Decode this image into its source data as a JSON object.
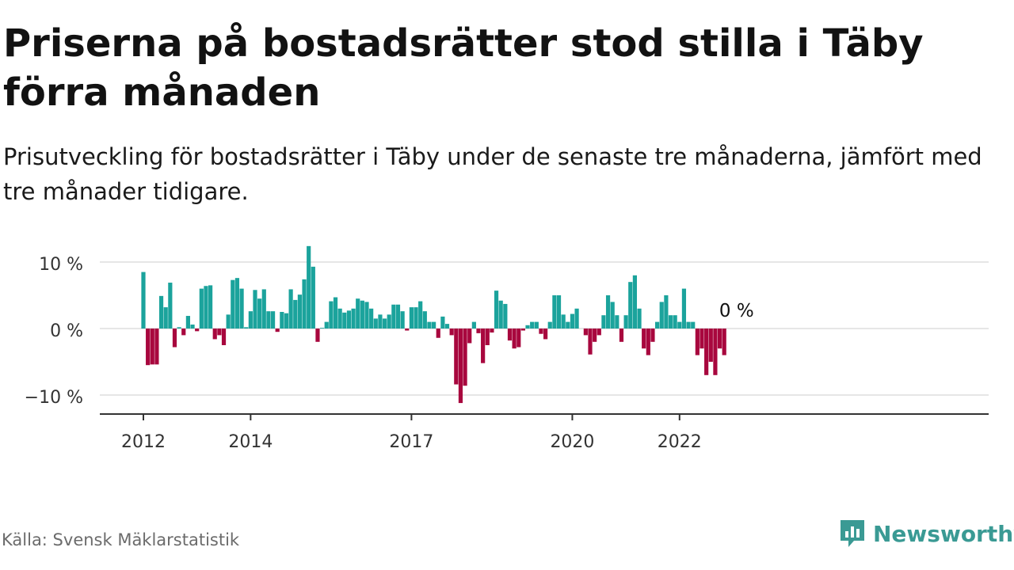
{
  "header": {
    "title": "Priserna på bostadsrätter stod stilla i Täby förra månaden",
    "subtitle": "Prisutveckling för bostadsrätter i Täby under de senaste tre månaderna, jämfört med tre månader tidigare."
  },
  "footer": {
    "source": "Källa: Svensk Mäklarstatistik",
    "brand": "Newsworthy"
  },
  "colors": {
    "positive": "#1ba39c",
    "negative": "#a8073e",
    "grid": "#dddddd",
    "axis": "#333333",
    "brand": "#3a9a94"
  },
  "chart_data": {
    "type": "bar",
    "title": "Priserna på bostadsrätter stod stilla i Täby förra månaden",
    "subtitle": "Prisutveckling för bostadsrätter i Täby under de senaste tre månaderna, jämfört med tre månader tidigare.",
    "start": "2012-01",
    "ylim": [
      -13,
      12
    ],
    "yticks": [
      {
        "value": 10,
        "label": "10 %"
      },
      {
        "value": 0,
        "label": "0 %"
      },
      {
        "value": -10,
        "label": "−10 %"
      }
    ],
    "xticks": [
      {
        "label": "2012",
        "index": 0
      },
      {
        "label": "2014",
        "index": 24
      },
      {
        "label": "2017",
        "index": 60
      },
      {
        "label": "2020",
        "index": 96
      },
      {
        "label": "2022",
        "index": 120
      }
    ],
    "annotation": {
      "label": "0 %",
      "index": 131
    },
    "grid": true,
    "values": [
      8.5,
      -5.5,
      -5.4,
      -5.4,
      4.9,
      3.2,
      6.9,
      -2.8,
      0.2,
      -1.0,
      1.9,
      0.6,
      -0.4,
      6.0,
      6.4,
      6.5,
      -1.6,
      -1.0,
      -2.5,
      2.1,
      7.3,
      7.6,
      6.0,
      0.2,
      2.6,
      5.8,
      4.5,
      5.9,
      2.6,
      2.6,
      -0.5,
      2.5,
      2.3,
      5.9,
      4.3,
      5.1,
      7.4,
      12.4,
      9.3,
      -2.0,
      0.1,
      1.0,
      4.1,
      4.7,
      3.0,
      2.4,
      2.7,
      3.0,
      4.5,
      4.2,
      4.0,
      3.0,
      1.5,
      2.1,
      1.5,
      2.1,
      3.6,
      3.6,
      2.6,
      -0.3,
      3.2,
      3.2,
      4.1,
      2.6,
      1.0,
      1.0,
      -1.4,
      1.8,
      0.7,
      -1.0,
      -8.4,
      -11.2,
      -8.6,
      -2.2,
      1.0,
      -0.7,
      -5.2,
      -2.5,
      -0.6,
      5.7,
      4.2,
      3.7,
      -1.8,
      -3.0,
      -2.8,
      -0.3,
      0.5,
      1.0,
      1.0,
      -0.8,
      -1.6,
      1.0,
      5.0,
      5.0,
      2.1,
      1.0,
      2.2,
      3.0,
      0.0,
      -1.0,
      -3.9,
      -2.0,
      -1.0,
      2.0,
      5.0,
      4.0,
      2.0,
      -2.0,
      2.0,
      7.0,
      8.0,
      3.0,
      -3.0,
      -4.0,
      -2.0,
      1.0,
      4.0,
      5.0,
      2.0,
      2.0,
      1.0,
      6.0,
      1.0,
      1.0,
      -4.0,
      -3.0,
      -7.0,
      -5.0,
      -7.0,
      -3.0,
      -4.0,
      0.0
    ]
  }
}
